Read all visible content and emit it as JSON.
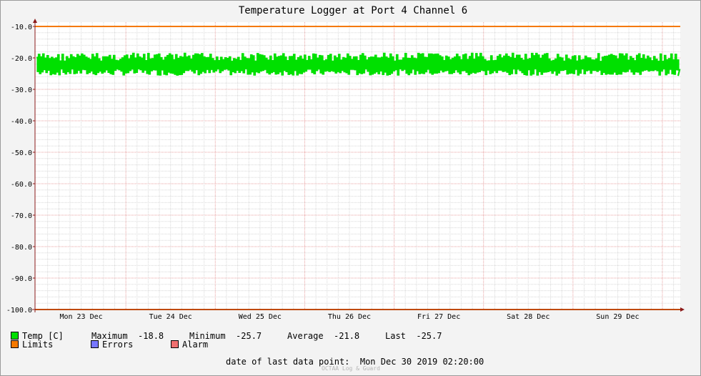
{
  "chart_data": {
    "type": "line",
    "title": "Temperature Logger at Port 4 Channel 6",
    "ylim": [
      -100,
      -10
    ],
    "y_ticks": [
      "-10.0",
      "-20.0",
      "-30.0",
      "-40.0",
      "-50.0",
      "-60.0",
      "-70.0",
      "-80.0",
      "-90.0",
      "-100.0"
    ],
    "x_ticks": [
      "Mon 23 Dec",
      "Tue 24 Dec",
      "Wed 25 Dec",
      "Thu 26 Dec",
      "Fri 27 Dec",
      "Sat 28 Dec",
      "Sun 29 Dec"
    ],
    "grid": true,
    "series": [
      {
        "name": "Temp [C]",
        "color": "#00e000",
        "range": [
          -25.7,
          -18.8
        ],
        "average": -21.8,
        "last": -25.7
      },
      {
        "name": "Limits",
        "color": "#f57900",
        "values": [
          -10.0,
          -100.0
        ]
      }
    ]
  },
  "legend": {
    "temp_label": "Temp [C]",
    "max_label": "Maximum",
    "max_value": "-18.8",
    "min_label": "Minimum",
    "min_value": "-25.7",
    "avg_label": "Average",
    "avg_value": "-21.8",
    "last_label": "Last",
    "last_value": "-25.7",
    "limits_label": "Limits",
    "errors_label": "Errors",
    "alarm_label": "Alarm"
  },
  "colors": {
    "temp": "#00e000",
    "limits": "#f57900",
    "errors": "#7777ff",
    "alarm": "#f07070",
    "axis": "#8b1a1a"
  },
  "footer": {
    "date_label": "date of last data point:",
    "date_value": "Mon Dec 30 2019 02:20:00",
    "credit": "OCTAA Log & Guard"
  }
}
